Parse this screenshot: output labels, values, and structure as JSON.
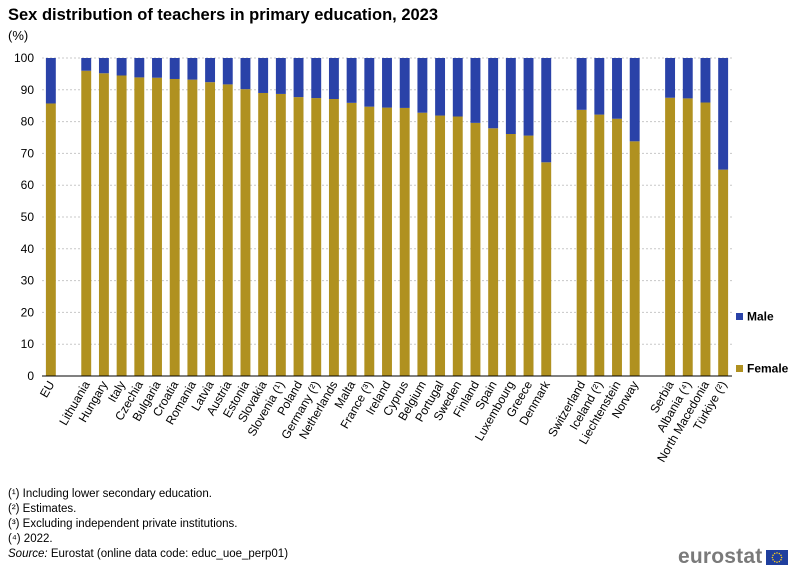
{
  "title": "Sex distribution of teachers in primary education, 2023",
  "unit": "(%)",
  "chart_data": {
    "type": "bar",
    "stacked": true,
    "title": "Sex distribution of teachers in primary education, 2023",
    "ylabel": "(%)",
    "xlabel": "",
    "ylim": [
      0,
      100
    ],
    "yticks": [
      0,
      10,
      20,
      30,
      40,
      50,
      60,
      70,
      80,
      90,
      100
    ],
    "grid": true,
    "legend_position": "right",
    "categories": [
      "EU",
      "",
      "Lithuania",
      "Hungary",
      "Italy",
      "Czechia",
      "Bulgaria",
      "Croatia",
      "Romania",
      "Latvia",
      "Austria",
      "Estonia",
      "Slovakia",
      "Slovenia (¹)",
      "Poland",
      "Germany (²)",
      "Netherlands",
      "Malta",
      "France (³)",
      "Ireland",
      "Cyprus",
      "Belgium",
      "Portugal",
      "Sweden",
      "Finland",
      "Spain",
      "Luxembourg",
      "Greece",
      "Denmark",
      "",
      "Switzerland",
      "Iceland (²)",
      "Liechtenstein",
      "Norway",
      "",
      "Serbia",
      "Albania (⁴)",
      "North Macedonia",
      "Türkiye (²)"
    ],
    "series": [
      {
        "name": "Female",
        "color": "#b09120",
        "values": [
          85.7,
          null,
          96.0,
          95.2,
          94.5,
          93.9,
          93.8,
          93.4,
          93.2,
          92.4,
          91.7,
          90.2,
          89.0,
          88.7,
          87.7,
          87.4,
          87.1,
          85.9,
          84.7,
          84.4,
          84.3,
          82.8,
          81.9,
          81.6,
          79.6,
          77.9,
          76.1,
          75.6,
          67.2,
          null,
          83.7,
          82.2,
          80.9,
          73.8,
          null,
          87.5,
          87.3,
          86.0,
          64.9
        ]
      },
      {
        "name": "Male",
        "color": "#2a42a8",
        "values": [
          14.3,
          null,
          4.0,
          4.8,
          5.5,
          6.1,
          6.2,
          6.6,
          6.8,
          7.6,
          8.3,
          9.8,
          11.0,
          11.3,
          12.3,
          12.6,
          12.9,
          14.1,
          15.3,
          15.6,
          15.7,
          17.2,
          18.1,
          18.4,
          20.4,
          22.1,
          23.9,
          24.4,
          32.8,
          null,
          16.3,
          17.8,
          19.1,
          26.2,
          null,
          12.5,
          12.7,
          14.0,
          35.1
        ]
      }
    ]
  },
  "footnotes": [
    "(¹) Including  lower secondary education.",
    "(²) Estimates.",
    "(³) Excluding independent private institutions.",
    "(⁴) 2022."
  ],
  "source": {
    "label": "Source:",
    "text": " Eurostat (online data code: educ_uoe_perp01)"
  },
  "logo": {
    "text": "eurostat"
  }
}
